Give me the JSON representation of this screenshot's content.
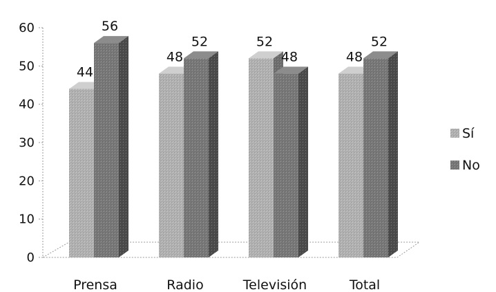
{
  "chart_data": {
    "type": "bar",
    "categories": [
      "Prensa",
      "Radio",
      "Televisión",
      "Total"
    ],
    "series": [
      {
        "name": "Sí",
        "values": [
          44,
          48,
          52,
          48
        ],
        "color": "#b4b4b4"
      },
      {
        "name": "No",
        "values": [
          56,
          52,
          48,
          52
        ],
        "color": "#7a7a7a"
      }
    ],
    "title": "",
    "xlabel": "",
    "ylabel": "",
    "ylim": [
      0,
      60
    ],
    "yticks": [
      "0",
      "10",
      "20",
      "30",
      "40",
      "50",
      "60"
    ],
    "legend_position": "right",
    "grid": false,
    "style": "3d-column"
  }
}
